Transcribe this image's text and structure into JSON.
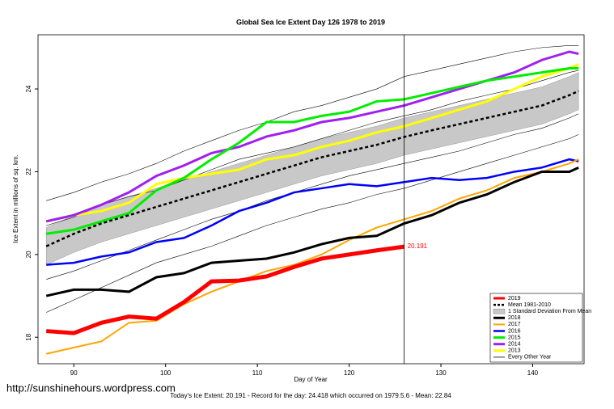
{
  "chart_data": {
    "type": "line",
    "title": "Global Sea Ice Extent Day 126 1978 to 2019",
    "xlabel": "Day of Year",
    "ylabel": "Ice Extent in millions of sq. km.",
    "footnote": "Today's Ice Extent: 20.191  - Record for the day: 24.418 which occurred on 1979.5.6  - Mean: 22.84",
    "watermark": "http://sunshinehours.wordpress.com",
    "xlim": [
      86.1,
      145.6
    ],
    "ylim": [
      17.36,
      25.31
    ],
    "xticks": [
      90,
      100,
      110,
      120,
      130,
      140
    ],
    "yticks": [
      18,
      20,
      22,
      24
    ],
    "vline": 126,
    "annotation": {
      "x": 126,
      "value": 20.191
    },
    "legend": "bottom-right",
    "x": [
      87,
      90,
      93,
      96,
      99,
      102,
      105,
      108,
      111,
      114,
      117,
      120,
      123,
      126,
      129,
      132,
      135,
      138,
      141,
      144,
      145
    ],
    "band": {
      "name": "1 Standard Deviation From Mean",
      "color": "#c8c8c8",
      "lower": [
        19.75,
        20.05,
        20.3,
        20.5,
        20.7,
        20.9,
        21.1,
        21.3,
        21.5,
        21.7,
        21.9,
        22.05,
        22.2,
        22.4,
        22.55,
        22.7,
        22.85,
        23.0,
        23.15,
        23.4,
        23.5
      ],
      "upper": [
        20.65,
        20.95,
        21.2,
        21.4,
        21.6,
        21.8,
        22.0,
        22.2,
        22.4,
        22.6,
        22.8,
        22.95,
        23.1,
        23.3,
        23.45,
        23.6,
        23.75,
        23.9,
        24.05,
        24.3,
        24.4
      ]
    },
    "others": {
      "name": "Every Other Year",
      "color": "#000000",
      "lines": [
        [
          21.3,
          21.5,
          21.75,
          21.95,
          22.2,
          22.5,
          22.75,
          23.0,
          23.2,
          23.45,
          23.6,
          23.8,
          24.0,
          24.3,
          24.45,
          24.6,
          24.75,
          24.9,
          25.0,
          25.05,
          25.05
        ],
        [
          20.7,
          20.9,
          21.2,
          21.4,
          21.55,
          21.8,
          22.05,
          22.3,
          22.45,
          22.6,
          22.8,
          23.0,
          23.2,
          23.35,
          23.5,
          23.7,
          23.85,
          24.0,
          24.2,
          24.4,
          24.45
        ],
        [
          19.4,
          19.6,
          19.85,
          20.1,
          20.35,
          20.6,
          20.85,
          21.05,
          21.3,
          21.5,
          21.7,
          21.9,
          22.05,
          22.2,
          22.35,
          22.5,
          22.7,
          22.9,
          23.05,
          23.3,
          23.4
        ],
        [
          18.6,
          18.9,
          19.2,
          19.5,
          19.8,
          20.0,
          20.2,
          20.45,
          20.7,
          20.9,
          21.1,
          21.25,
          21.45,
          21.6,
          21.8,
          22.0,
          22.2,
          22.4,
          22.6,
          22.8,
          22.9
        ]
      ]
    },
    "series": [
      {
        "name": "2019",
        "color": "#ff0000",
        "width": 5,
        "values": [
          18.15,
          18.1,
          18.35,
          18.5,
          18.45,
          18.85,
          19.35,
          19.37,
          19.47,
          19.7,
          19.9,
          20.0,
          20.1,
          20.19,
          null,
          null,
          null,
          null,
          null,
          null,
          null
        ]
      },
      {
        "name": "Mean 1981-2010",
        "color": "#000000",
        "width": 2.5,
        "dashed": true,
        "values": [
          20.2,
          20.5,
          20.75,
          20.95,
          21.15,
          21.35,
          21.55,
          21.75,
          21.95,
          22.15,
          22.35,
          22.5,
          22.65,
          22.84,
          23.0,
          23.15,
          23.3,
          23.45,
          23.6,
          23.85,
          23.95
        ]
      },
      {
        "name": "2018",
        "color": "#000000",
        "width": 3,
        "values": [
          19.0,
          19.15,
          19.15,
          19.1,
          19.45,
          19.55,
          19.8,
          19.85,
          19.9,
          20.05,
          20.25,
          20.4,
          20.45,
          20.75,
          20.95,
          21.25,
          21.45,
          21.75,
          22.0,
          22.0,
          22.1
        ]
      },
      {
        "name": "2017",
        "color": "#ffa500",
        "width": 2,
        "values": [
          17.6,
          17.75,
          17.9,
          18.35,
          18.4,
          18.8,
          19.1,
          19.35,
          19.6,
          19.75,
          20.0,
          20.35,
          20.65,
          20.85,
          21.05,
          21.35,
          21.55,
          21.85,
          22.0,
          22.2,
          22.3
        ]
      },
      {
        "name": "2016",
        "color": "#0000ff",
        "width": 2.5,
        "values": [
          19.75,
          19.8,
          19.95,
          20.05,
          20.3,
          20.4,
          20.7,
          21.05,
          21.25,
          21.5,
          21.6,
          21.7,
          21.65,
          21.75,
          21.85,
          21.8,
          21.85,
          22.0,
          22.1,
          22.3,
          22.25
        ]
      },
      {
        "name": "2015",
        "color": "#00ee00",
        "width": 3,
        "values": [
          20.5,
          20.6,
          20.8,
          21.0,
          21.55,
          21.85,
          22.3,
          22.7,
          23.2,
          23.2,
          23.35,
          23.45,
          23.7,
          23.75,
          23.9,
          24.05,
          24.2,
          24.3,
          24.4,
          24.5,
          24.5
        ]
      },
      {
        "name": "2014",
        "color": "#a020f0",
        "width": 3,
        "values": [
          20.8,
          20.95,
          21.2,
          21.5,
          21.9,
          22.15,
          22.45,
          22.6,
          22.85,
          23.0,
          23.2,
          23.3,
          23.45,
          23.6,
          23.8,
          24.0,
          24.2,
          24.4,
          24.7,
          24.9,
          24.85
        ]
      },
      {
        "name": "2013",
        "color": "#ffff00",
        "width": 3,
        "values": [
          20.8,
          20.95,
          21.05,
          21.25,
          21.7,
          21.85,
          21.95,
          22.05,
          22.3,
          22.4,
          22.6,
          22.75,
          22.95,
          23.1,
          23.3,
          23.5,
          23.7,
          24.0,
          24.3,
          24.5,
          24.6
        ]
      }
    ]
  }
}
